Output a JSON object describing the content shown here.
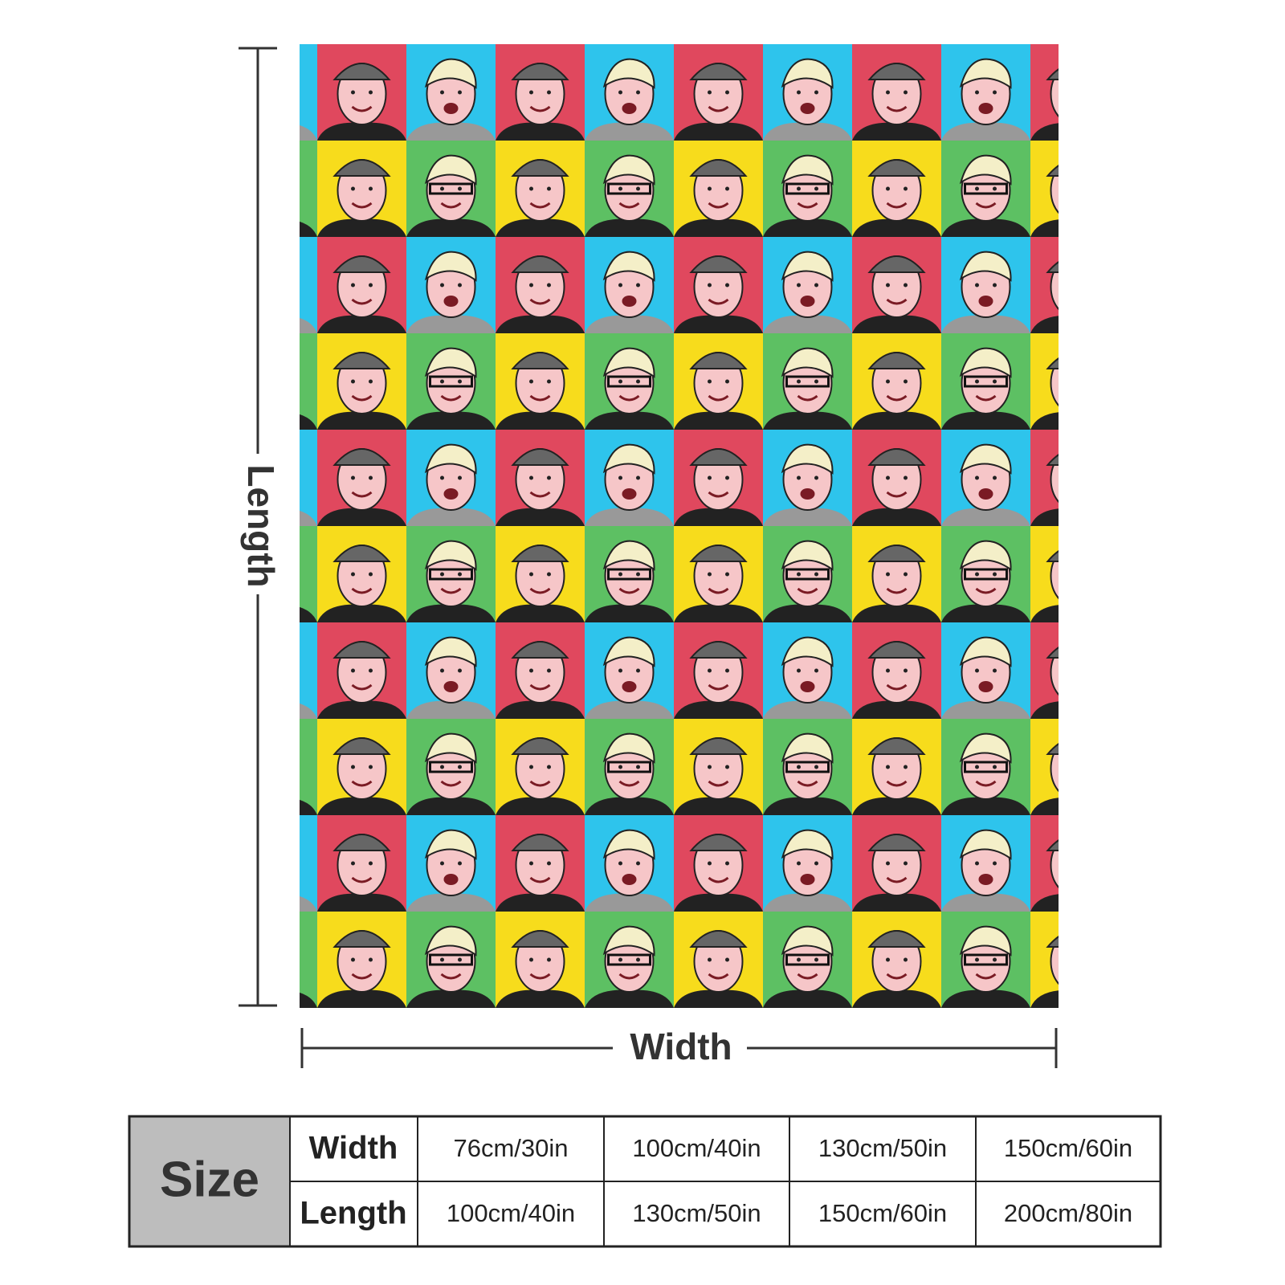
{
  "product": {
    "length_label": "Length",
    "width_label": "Width"
  },
  "table": {
    "header": "Size",
    "rows": [
      {
        "label": "Width",
        "cells": [
          "76cm/30in",
          "100cm/40in",
          "130cm/50in",
          "150cm/60in"
        ]
      },
      {
        "label": "Length",
        "cells": [
          "100cm/40in",
          "130cm/50in",
          "150cm/60in",
          "200cm/80in"
        ]
      }
    ]
  }
}
